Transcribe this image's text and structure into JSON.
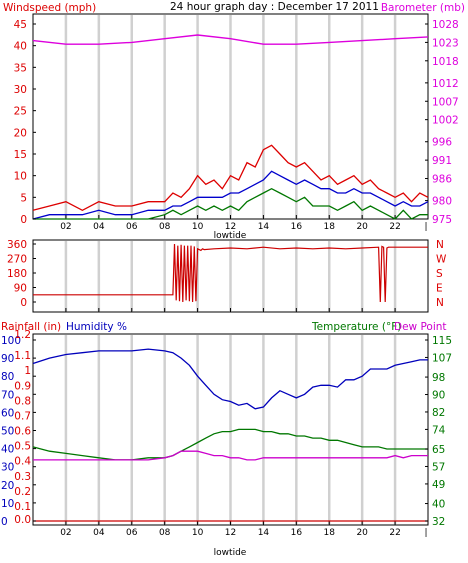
{
  "chart_data": [
    {
      "type": "line",
      "title": "24 hour graph day : December 17 2011",
      "left_label": "Windspeed (mph)",
      "right_label": "Barometer (mb)",
      "x_ticks": [
        "02",
        "04",
        "06",
        "08",
        "10",
        "12",
        "14",
        "16",
        "18",
        "20",
        "22",
        "|"
      ],
      "x_label": "lowtide",
      "y_left_ticks": [
        "0",
        "5",
        "10",
        "15",
        "20",
        "25",
        "30",
        "35",
        "40",
        "45"
      ],
      "y_left_range": [
        0,
        45
      ],
      "y_right_ticks": [
        "975",
        "980",
        "986",
        "991",
        "996",
        "1002",
        "1007",
        "1012",
        "1018",
        "1023",
        "1028"
      ],
      "y_right_range": [
        975,
        1028
      ],
      "x_range": [
        0,
        24
      ],
      "grid": "vertical",
      "series": [
        {
          "key": "barometer",
          "axis": "right",
          "color": "#dd00dd",
          "x": [
            0,
            2,
            4,
            6,
            8,
            10,
            12,
            14,
            16,
            18,
            20,
            22,
            24
          ],
          "y": [
            1023.5,
            1022.5,
            1022.5,
            1023,
            1024,
            1025,
            1024,
            1022.5,
            1022.5,
            1023,
            1023.5,
            1024,
            1024.5
          ]
        },
        {
          "key": "wind_gust",
          "axis": "left",
          "color": "#dd0000",
          "x": [
            0,
            1,
            2,
            3,
            4,
            5,
            6,
            7,
            8,
            8.5,
            9,
            9.5,
            10,
            10.5,
            11,
            11.5,
            12,
            12.5,
            13,
            13.5,
            14,
            14.5,
            15,
            15.5,
            16,
            16.5,
            17,
            17.5,
            18,
            18.5,
            19,
            19.5,
            20,
            20.5,
            21,
            21.5,
            22,
            22.5,
            23,
            23.5,
            24
          ],
          "y": [
            2,
            3,
            4,
            2,
            4,
            3,
            3,
            4,
            4,
            6,
            5,
            7,
            10,
            8,
            9,
            7,
            10,
            9,
            13,
            12,
            16,
            17,
            15,
            13,
            12,
            13,
            11,
            9,
            10,
            8,
            9,
            10,
            8,
            9,
            7,
            6,
            5,
            6,
            4,
            6,
            5
          ]
        },
        {
          "key": "wind_avg",
          "axis": "left",
          "color": "#0000cc",
          "x": [
            0,
            1,
            2,
            3,
            4,
            5,
            6,
            7,
            8,
            8.5,
            9,
            9.5,
            10,
            10.5,
            11,
            11.5,
            12,
            12.5,
            13,
            13.5,
            14,
            14.5,
            15,
            15.5,
            16,
            16.5,
            17,
            17.5,
            18,
            18.5,
            19,
            19.5,
            20,
            20.5,
            21,
            21.5,
            22,
            22.5,
            23,
            23.5,
            24
          ],
          "y": [
            0,
            1,
            1,
            1,
            2,
            1,
            1,
            2,
            2,
            3,
            3,
            4,
            5,
            5,
            5,
            5,
            6,
            6,
            7,
            8,
            9,
            11,
            10,
            9,
            8,
            9,
            8,
            7,
            7,
            6,
            6,
            7,
            6,
            6,
            5,
            4,
            3,
            4,
            3,
            3,
            4
          ]
        },
        {
          "key": "wind_low",
          "axis": "left",
          "color": "#007700",
          "x": [
            0,
            1,
            2,
            3,
            4,
            5,
            6,
            7,
            8,
            8.5,
            9,
            9.5,
            10,
            10.5,
            11,
            11.5,
            12,
            12.5,
            13,
            13.5,
            14,
            14.5,
            15,
            15.5,
            16,
            16.5,
            17,
            17.5,
            18,
            18.5,
            19,
            19.5,
            20,
            20.5,
            21,
            21.5,
            22,
            22.5,
            23,
            23.5,
            24
          ],
          "y": [
            0,
            0,
            0,
            0,
            0,
            0,
            0,
            0,
            1,
            2,
            1,
            2,
            3,
            2,
            3,
            2,
            3,
            2,
            4,
            5,
            6,
            7,
            6,
            5,
            4,
            5,
            3,
            3,
            3,
            2,
            3,
            4,
            2,
            3,
            2,
            1,
            0,
            2,
            0,
            1,
            1
          ]
        }
      ]
    },
    {
      "type": "line",
      "left_ticks": [
        "360",
        "270",
        "180",
        "90",
        "0"
      ],
      "left_range": [
        0,
        360
      ],
      "right_labels": [
        "N",
        "W",
        "S",
        "E",
        "N"
      ],
      "x_range": [
        0,
        24
      ],
      "series": [
        {
          "key": "wind_direction",
          "color": "#cc0000",
          "x": [
            0,
            8.5,
            8.6,
            8.7,
            8.8,
            8.9,
            9.0,
            9.1,
            9.2,
            9.3,
            9.4,
            9.5,
            9.6,
            9.7,
            9.8,
            9.9,
            10.0,
            10.2,
            10.3,
            10.4,
            11,
            12,
            13,
            14,
            15,
            16,
            17,
            18,
            19,
            20,
            21,
            21.1,
            21.2,
            21.3,
            21.4,
            21.5,
            21.6,
            22,
            24
          ],
          "y": [
            45,
            45,
            360,
            10,
            350,
            5,
            355,
            0,
            350,
            10,
            350,
            5,
            350,
            0,
            345,
            5,
            330,
            320,
            330,
            325,
            330,
            335,
            330,
            340,
            330,
            335,
            330,
            335,
            330,
            335,
            340,
            0,
            345,
            340,
            0,
            335,
            340,
            340,
            340
          ]
        }
      ]
    },
    {
      "type": "line",
      "left_label_rain": "Rainfall (in)",
      "left_label_hum": "Humidity %",
      "right_label_temp": "Temperature (°F)",
      "right_label_dew": "Dew Point",
      "x_ticks": [
        "02",
        "04",
        "06",
        "08",
        "10",
        "12",
        "14",
        "16",
        "18",
        "20",
        "22",
        "|"
      ],
      "x_label": "lowtide",
      "rain_ticks": [
        "1.2",
        "1.1",
        "1",
        "0.9",
        "0.8",
        "0.7",
        "0.6",
        "0.5",
        "0.4",
        "0.3",
        "0.2",
        "0.1",
        "0.0"
      ],
      "humidity_ticks": [
        "100",
        "90",
        "80",
        "70",
        "60",
        "50",
        "40",
        "30",
        "20",
        "10",
        "0"
      ],
      "temp_ticks": [
        "115",
        "107",
        "98",
        "90",
        "82",
        "74",
        "65",
        "57",
        "49",
        "40",
        "32"
      ],
      "humidity_range": [
        0,
        100
      ],
      "temp_range": [
        32,
        115
      ],
      "rain_range": [
        0,
        1.2
      ],
      "x_range": [
        0,
        24
      ],
      "series": [
        {
          "key": "humidity",
          "axis": "humidity",
          "color": "#0000bb",
          "x": [
            0,
            1,
            2,
            3,
            4,
            5,
            6,
            7,
            8,
            8.5,
            9,
            9.5,
            10,
            10.5,
            11,
            11.5,
            12,
            12.5,
            13,
            13.5,
            14,
            14.5,
            15,
            15.5,
            16,
            16.5,
            17,
            17.5,
            18,
            18.5,
            19,
            19.5,
            20,
            20.5,
            21,
            21.5,
            22,
            22.5,
            23,
            23.5,
            24
          ],
          "y": [
            87,
            90,
            92,
            93,
            94,
            94,
            94,
            95,
            94,
            93,
            90,
            86,
            80,
            75,
            70,
            67,
            66,
            64,
            65,
            62,
            63,
            68,
            72,
            70,
            68,
            70,
            74,
            75,
            75,
            74,
            78,
            78,
            80,
            84,
            84,
            84,
            86,
            87,
            88,
            89,
            89
          ]
        },
        {
          "key": "temperature",
          "axis": "temp",
          "color": "#007700",
          "x": [
            0,
            1,
            2,
            3,
            4,
            5,
            6,
            7,
            8,
            8.5,
            9,
            9.5,
            10,
            10.5,
            11,
            11.5,
            12,
            12.5,
            13,
            13.5,
            14,
            14.5,
            15,
            15.5,
            16,
            16.5,
            17,
            17.5,
            18,
            18.5,
            19,
            19.5,
            20,
            20.5,
            21,
            21.5,
            22,
            22.5,
            23,
            23.5,
            24
          ],
          "y": [
            66,
            64,
            63,
            62,
            61,
            60,
            60,
            61,
            61,
            62,
            64,
            66,
            68,
            70,
            72,
            73,
            73,
            74,
            74,
            74,
            73,
            73,
            72,
            72,
            71,
            71,
            70,
            70,
            69,
            69,
            68,
            67,
            66,
            66,
            66,
            65,
            65,
            65,
            65,
            65,
            65
          ]
        },
        {
          "key": "dew_point",
          "axis": "temp",
          "color": "#cc00cc",
          "x": [
            0,
            1,
            2,
            3,
            4,
            5,
            6,
            7,
            8,
            8.5,
            9,
            9.5,
            10,
            10.5,
            11,
            11.5,
            12,
            12.5,
            13,
            13.5,
            14,
            14.5,
            15,
            15.5,
            16,
            16.5,
            17,
            17.5,
            18,
            18.5,
            19,
            19.5,
            20,
            20.5,
            21,
            21.5,
            22,
            22.5,
            23,
            23.5,
            24
          ],
          "y": [
            60,
            60,
            60,
            60,
            60,
            60,
            60,
            60,
            61,
            62,
            64,
            64,
            64,
            63,
            62,
            62,
            61,
            61,
            60,
            60,
            61,
            61,
            61,
            61,
            61,
            61,
            61,
            61,
            61,
            61,
            61,
            61,
            61,
            61,
            61,
            61,
            62,
            61,
            62,
            62,
            62
          ]
        },
        {
          "key": "rainfall",
          "axis": "rain",
          "color": "#cc0000",
          "x": [
            0,
            24
          ],
          "y": [
            0,
            0
          ]
        }
      ]
    }
  ],
  "colors": {
    "red": "#dd0000",
    "magenta": "#dd00dd",
    "blue": "#0000cc",
    "green": "#007700",
    "grid": "#cccccc",
    "frame": "#000000"
  }
}
